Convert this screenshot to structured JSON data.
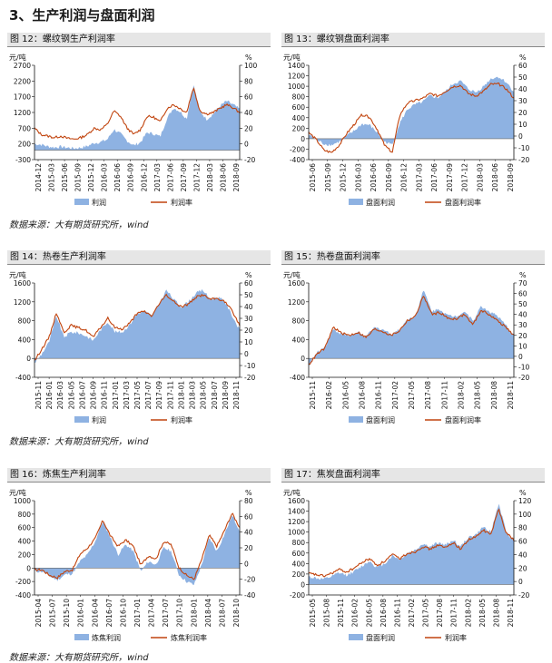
{
  "section_title": "3、生产利润与盘面利润",
  "source_text": "数据来源：大有期货研究所，wind",
  "colors": {
    "area": "#8eb2e2",
    "line": "#c1440e",
    "grid": "#000000"
  },
  "chart_data": [
    {
      "title": "图 12：螺纹钢生产利润率",
      "type": "area+line",
      "left_unit": "元/吨",
      "right_unit": "%",
      "left_ticks": [
        "2700",
        "2200",
        "1700",
        "1200",
        "700",
        "200",
        "-300"
      ],
      "right_ticks": [
        "100",
        "80",
        "60",
        "40",
        "20",
        "0",
        "-20"
      ],
      "ylim_left": [
        -300,
        2700
      ],
      "ylim_right": [
        -20,
        100
      ],
      "x_labels": [
        "2014-12",
        "2015-03",
        "2015-06",
        "2015-09",
        "2015-12",
        "2016-03",
        "2016-06",
        "2016-09",
        "2016-12",
        "2017-03",
        "2017-06",
        "2017-09",
        "2017-12",
        "2018-03",
        "2018-06",
        "2018-09"
      ],
      "legend": [
        "利润",
        "利润率"
      ],
      "area_points": [
        200,
        180,
        120,
        90,
        110,
        80,
        60,
        80,
        130,
        230,
        260,
        340,
        660,
        520,
        300,
        150,
        250,
        560,
        520,
        430,
        1000,
        1350,
        1230,
        1000,
        2100,
        1250,
        980,
        1150,
        1400,
        1560,
        1450,
        1300
      ],
      "line_points": [
        20,
        12,
        10,
        8,
        10,
        7,
        6,
        8,
        12,
        20,
        18,
        25,
        42,
        35,
        20,
        12,
        18,
        35,
        34,
        28,
        45,
        50,
        45,
        40,
        72,
        42,
        38,
        40,
        45,
        50,
        46,
        40
      ]
    },
    {
      "title": "图 13：螺纹钢盘面利润率",
      "type": "area+line",
      "left_unit": "元/吨",
      "right_unit": "%",
      "left_ticks": [
        "1400",
        "1200",
        "1000",
        "800",
        "600",
        "400",
        "200",
        "0",
        "-200",
        "-400"
      ],
      "right_ticks": [
        "60",
        "50",
        "40",
        "30",
        "20",
        "10",
        "0",
        "-10",
        "-20"
      ],
      "ylim_left": [
        -400,
        1400
      ],
      "ylim_right": [
        -20,
        60
      ],
      "x_labels": [
        "2015-06",
        "2015-09",
        "2015-12",
        "2016-03",
        "2016-06",
        "2016-09",
        "2016-12",
        "2017-03",
        "2017-06",
        "2017-09",
        "2017-12",
        "2018-03",
        "2018-06",
        "2018-09"
      ],
      "legend": [
        "盘面利润",
        "盘面利润率"
      ],
      "area_points": [
        80,
        -20,
        -100,
        -120,
        -60,
        50,
        150,
        280,
        260,
        120,
        -60,
        -120,
        300,
        560,
        650,
        700,
        820,
        780,
        900,
        1050,
        1100,
        950,
        880,
        1000,
        1150,
        1180,
        1080,
        900
      ],
      "line_points": [
        3,
        -3,
        -12,
        -14,
        -8,
        2,
        10,
        18,
        16,
        6,
        -8,
        -14,
        18,
        28,
        30,
        32,
        36,
        34,
        38,
        42,
        43,
        36,
        34,
        38,
        44,
        44,
        40,
        32
      ]
    },
    {
      "title": "图 14：热卷生产利润率",
      "type": "area+line",
      "left_unit": "元/吨",
      "right_unit": "%",
      "left_ticks": [
        "1600",
        "1200",
        "800",
        "400",
        "0",
        "-400"
      ],
      "right_ticks": [
        "60",
        "50",
        "40",
        "30",
        "20",
        "10",
        "0",
        "-10",
        "-20"
      ],
      "ylim_left": [
        -400,
        1600
      ],
      "ylim_right": [
        -20,
        60
      ],
      "x_labels": [
        "2015-11",
        "2016-01",
        "2016-03",
        "2016-05",
        "2016-07",
        "2016-09",
        "2016-11",
        "2017-01",
        "2017-03",
        "2017-05",
        "2017-07",
        "2017-09",
        "2017-11",
        "2018-01",
        "2018-03",
        "2018-05",
        "2018-07",
        "2018-09",
        "2018-11"
      ],
      "legend": [
        "利润",
        "利润率"
      ],
      "area_points": [
        -100,
        100,
        350,
        900,
        450,
        560,
        540,
        480,
        380,
        600,
        780,
        560,
        560,
        720,
        950,
        1000,
        900,
        1150,
        1450,
        1250,
        1100,
        1200,
        1380,
        1450,
        1250,
        1300,
        1200,
        900,
        600
      ],
      "line_points": [
        -6,
        4,
        14,
        35,
        18,
        24,
        22,
        20,
        14,
        22,
        30,
        22,
        21,
        26,
        34,
        36,
        32,
        42,
        50,
        44,
        40,
        42,
        48,
        50,
        46,
        47,
        44,
        36,
        24
      ]
    },
    {
      "title": "图 15：热卷盘面利润率",
      "type": "area+line",
      "left_unit": "元/吨",
      "right_unit": "%",
      "left_ticks": [
        "1600",
        "1200",
        "800",
        "400",
        "0",
        "-400"
      ],
      "right_ticks": [
        "70",
        "60",
        "50",
        "40",
        "30",
        "20",
        "10",
        "0",
        "-10",
        "-20"
      ],
      "ylim_left": [
        -400,
        1600
      ],
      "ylim_right": [
        -20,
        70
      ],
      "x_labels": [
        "2015-11",
        "2016-02",
        "2016-05",
        "2016-08",
        "2016-11",
        "2017-02",
        "2017-05",
        "2017-08",
        "2017-11",
        "2018-02",
        "2018-05",
        "2018-08",
        "2018-11"
      ],
      "legend": [
        "盘面利润",
        "盘面利润率"
      ],
      "area_points": [
        -150,
        120,
        250,
        620,
        520,
        480,
        540,
        460,
        650,
        620,
        520,
        600,
        820,
        900,
        1450,
        1000,
        1050,
        900,
        900,
        1000,
        800,
        1100,
        1000,
        900,
        700,
        500
      ],
      "line_points": [
        -8,
        2,
        8,
        28,
        22,
        20,
        23,
        18,
        26,
        24,
        20,
        24,
        34,
        38,
        58,
        40,
        42,
        36,
        36,
        40,
        30,
        44,
        40,
        34,
        28,
        20
      ]
    },
    {
      "title": "图 16：炼焦生产利润率",
      "type": "area+line",
      "left_unit": "元/吨",
      "right_unit": "%",
      "left_ticks": [
        "1000",
        "800",
        "600",
        "400",
        "200",
        "0",
        "-200",
        "-400"
      ],
      "right_ticks": [
        "80",
        "60",
        "40",
        "20",
        "0",
        "-20",
        "-40"
      ],
      "ylim_left": [
        -400,
        1000
      ],
      "ylim_right": [
        -40,
        80
      ],
      "x_labels": [
        "2015-04",
        "2015-07",
        "2015-10",
        "2016-01",
        "2016-04",
        "2016-07",
        "2016-10",
        "2017-01",
        "2017-04",
        "2017-07",
        "2017-10",
        "2018-01",
        "2018-04",
        "2018-07",
        "2018-10"
      ],
      "legend": [
        "炼焦利润",
        "炼焦利润率"
      ],
      "area_points": [
        -50,
        -50,
        -120,
        -180,
        -100,
        -80,
        100,
        200,
        400,
        700,
        450,
        200,
        350,
        250,
        -50,
        100,
        50,
        300,
        250,
        -100,
        -200,
        -250,
        50,
        450,
        250,
        500,
        780,
        560
      ],
      "line_points": [
        -8,
        -8,
        -15,
        -18,
        -10,
        -8,
        12,
        20,
        32,
        55,
        35,
        22,
        30,
        22,
        -2,
        10,
        6,
        28,
        24,
        -5,
        -15,
        -20,
        5,
        36,
        22,
        42,
        64,
        46
      ]
    },
    {
      "title": "图 17：焦炭盘面利润率",
      "type": "area+line",
      "left_unit": "元/吨",
      "right_unit": "%",
      "left_ticks": [
        "1600",
        "1400",
        "1200",
        "1000",
        "800",
        "600",
        "400",
        "200",
        "0",
        "-200"
      ],
      "right_ticks": [
        "120",
        "100",
        "80",
        "60",
        "40",
        "20",
        "0",
        "-20"
      ],
      "ylim_left": [
        -200,
        1600
      ],
      "ylim_right": [
        -20,
        120
      ],
      "x_labels": [
        "2015-05",
        "2015-08",
        "2015-11",
        "2016-02",
        "2016-05",
        "2016-08",
        "2016-11",
        "2017-02",
        "2017-05",
        "2017-08",
        "2017-11",
        "2018-02",
        "2018-05",
        "2018-08",
        "2018-11"
      ],
      "legend": [
        "盘面利润",
        "利润率"
      ],
      "area_points": [
        150,
        120,
        100,
        150,
        220,
        180,
        250,
        350,
        450,
        320,
        400,
        550,
        480,
        600,
        650,
        780,
        720,
        800,
        750,
        850,
        720,
        900,
        950,
        1100,
        1000,
        1550,
        1000,
        850
      ],
      "line_points": [
        12,
        10,
        8,
        12,
        18,
        14,
        20,
        28,
        34,
        24,
        30,
        40,
        34,
        42,
        44,
        52,
        48,
        54,
        50,
        58,
        48,
        62,
        66,
        76,
        70,
        108,
        72,
        62
      ]
    }
  ]
}
